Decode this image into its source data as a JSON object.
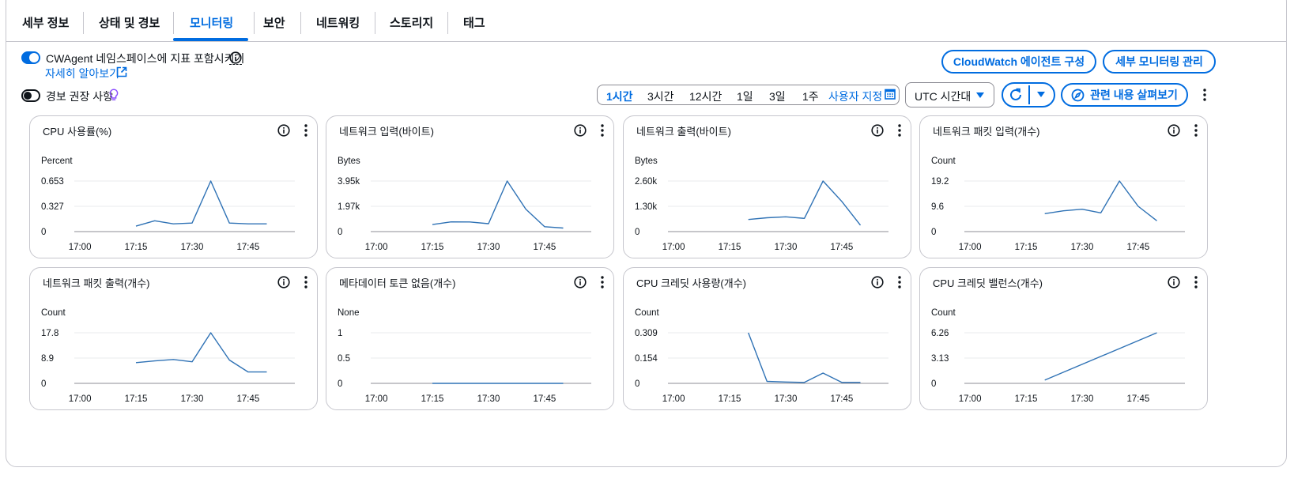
{
  "tabs": [
    {
      "label": "세부 정보",
      "active": false
    },
    {
      "label": "상태 및 경보",
      "active": false
    },
    {
      "label": "모니터링",
      "active": true
    },
    {
      "label": "보안",
      "active": false
    },
    {
      "label": "네트워킹",
      "active": false
    },
    {
      "label": "스토리지",
      "active": false
    },
    {
      "label": "태그",
      "active": false
    }
  ],
  "cwagent": {
    "toggle_on": true,
    "label": "CWAgent 네임스페이스에 지표 포함시키기",
    "learn_more": "자세히 알아보기"
  },
  "alarm": {
    "toggle_on": false,
    "label": "경보 권장 사항"
  },
  "buttons": {
    "cloudwatch_agent": "CloudWatch 에이전트 구성",
    "detailed_monitoring": "세부 모니터링 관리",
    "explore_related": "관련 내용 살펴보기"
  },
  "time_range": {
    "options": [
      "1시간",
      "3시간",
      "12시간",
      "1일",
      "3일",
      "1주"
    ],
    "selected": "1시간",
    "custom": "사용자 지정"
  },
  "timezone": {
    "selected": "UTC 시간대"
  },
  "icons": {
    "info": "info-icon",
    "more": "more-vertical-icon",
    "external": "external-link-icon",
    "calendar": "calendar-icon",
    "refresh": "refresh-icon",
    "compass": "compass-icon",
    "lightbulb": "lightbulb-icon",
    "caret": "caret-down-icon"
  },
  "colors": {
    "accent": "#006ce0",
    "series": "#2f72b5",
    "grid": "#e9ebed",
    "lightbulb": "#8c4fff"
  },
  "chart_data": [
    {
      "type": "line",
      "title": "CPU 사용률(%)",
      "ylabel": "Percent",
      "yticks": [
        "0.653",
        "0.327",
        "0"
      ],
      "ylim": [
        0,
        0.653
      ],
      "xticks": [
        "17:00",
        "17:15",
        "17:30",
        "17:45"
      ],
      "series": [
        {
          "x": [
            "17:15",
            "17:20",
            "17:25",
            "17:30",
            "17:35",
            "17:40",
            "17:45",
            "17:50"
          ],
          "values": [
            0.07,
            0.14,
            0.1,
            0.11,
            0.653,
            0.11,
            0.1,
            0.1
          ]
        }
      ]
    },
    {
      "type": "line",
      "title": "네트워크 입력(바이트)",
      "ylabel": "Bytes",
      "yticks": [
        "3.95k",
        "1.97k",
        "0"
      ],
      "ylim": [
        0,
        3950
      ],
      "xticks": [
        "17:00",
        "17:15",
        "17:30",
        "17:45"
      ],
      "series": [
        {
          "x": [
            "17:15",
            "17:20",
            "17:25",
            "17:30",
            "17:35",
            "17:40",
            "17:45",
            "17:50"
          ],
          "values": [
            550,
            760,
            750,
            620,
            3950,
            1750,
            380,
            280
          ]
        }
      ]
    },
    {
      "type": "line",
      "title": "네트워크 출력(바이트)",
      "ylabel": "Bytes",
      "yticks": [
        "2.60k",
        "1.30k",
        "0"
      ],
      "ylim": [
        0,
        2600
      ],
      "xticks": [
        "17:00",
        "17:15",
        "17:30",
        "17:45"
      ],
      "series": [
        {
          "x": [
            "17:20",
            "17:25",
            "17:30",
            "17:35",
            "17:40",
            "17:45",
            "17:50"
          ],
          "values": [
            620,
            710,
            760,
            680,
            2600,
            1550,
            330
          ]
        }
      ]
    },
    {
      "type": "line",
      "title": "네트워크 패킷 입력(개수)",
      "ylabel": "Count",
      "yticks": [
        "19.2",
        "9.6",
        "0"
      ],
      "ylim": [
        0,
        19.2
      ],
      "xticks": [
        "17:00",
        "17:15",
        "17:30",
        "17:45"
      ],
      "series": [
        {
          "x": [
            "17:20",
            "17:25",
            "17:30",
            "17:35",
            "17:40",
            "17:45",
            "17:50"
          ],
          "values": [
            6.8,
            7.9,
            8.5,
            7.1,
            19.2,
            9.6,
            4.1
          ]
        }
      ]
    },
    {
      "type": "line",
      "title": "네트워크 패킷 출력(개수)",
      "ylabel": "Count",
      "yticks": [
        "17.8",
        "8.9",
        "0"
      ],
      "ylim": [
        0,
        17.8
      ],
      "xticks": [
        "17:00",
        "17:15",
        "17:30",
        "17:45"
      ],
      "series": [
        {
          "x": [
            "17:15",
            "17:20",
            "17:25",
            "17:30",
            "17:35",
            "17:40",
            "17:45",
            "17:50"
          ],
          "values": [
            7.3,
            7.9,
            8.4,
            7.6,
            17.8,
            8.2,
            4.0,
            4.0
          ]
        }
      ]
    },
    {
      "type": "line",
      "title": "메타데이터 토큰 없음(개수)",
      "ylabel": "None",
      "yticks": [
        "1",
        "0.5",
        "0"
      ],
      "ylim": [
        0,
        1
      ],
      "xticks": [
        "17:00",
        "17:15",
        "17:30",
        "17:45"
      ],
      "series": [
        {
          "x": [
            "17:15",
            "17:20",
            "17:25",
            "17:30",
            "17:35",
            "17:40",
            "17:45",
            "17:50"
          ],
          "values": [
            0,
            0,
            0,
            0,
            0,
            0,
            0,
            0
          ]
        }
      ]
    },
    {
      "type": "line",
      "title": "CPU 크레딧 사용량(개수)",
      "ylabel": "Count",
      "yticks": [
        "0.309",
        "0.154",
        "0"
      ],
      "ylim": [
        0,
        0.309
      ],
      "xticks": [
        "17:00",
        "17:15",
        "17:30",
        "17:45"
      ],
      "series": [
        {
          "x": [
            "17:20",
            "17:25",
            "17:30",
            "17:35",
            "17:40",
            "17:45",
            "17:50"
          ],
          "values": [
            0.309,
            0.012,
            0.008,
            0.006,
            0.063,
            0.006,
            0.006
          ]
        }
      ]
    },
    {
      "type": "line",
      "title": "CPU 크레딧 밸런스(개수)",
      "ylabel": "Count",
      "yticks": [
        "6.26",
        "3.13",
        "0"
      ],
      "ylim": [
        0,
        6.26
      ],
      "xticks": [
        "17:00",
        "17:15",
        "17:30",
        "17:45"
      ],
      "series": [
        {
          "x": [
            "17:20",
            "17:50"
          ],
          "values": [
            0.4,
            6.26
          ]
        }
      ]
    }
  ]
}
